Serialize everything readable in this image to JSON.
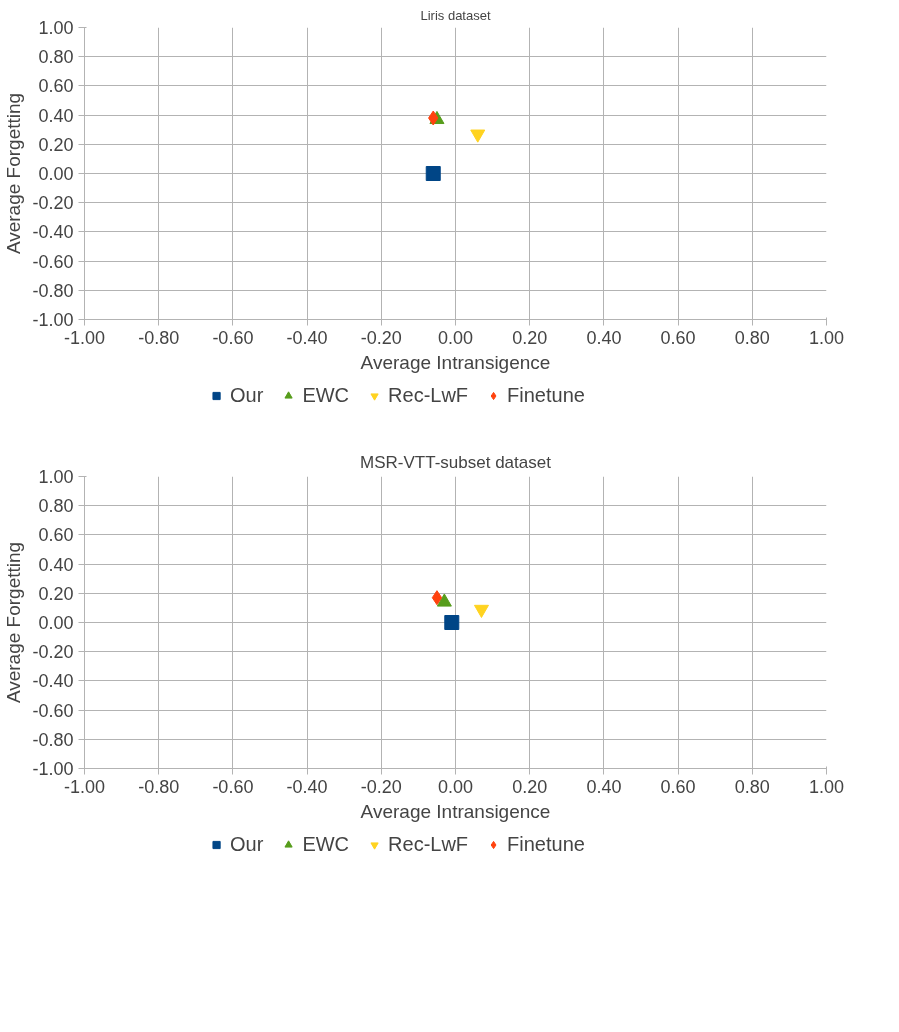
{
  "chart_data": [
    {
      "type": "scatter",
      "title": "Liris dataset",
      "xlabel": "Average Intransigence",
      "ylabel": "Average Forgetting",
      "grid": true,
      "legend": "bottom",
      "xlim": [
        -1,
        1
      ],
      "ylim": [
        -1,
        1
      ],
      "xticks": [
        {
          "value": -1,
          "label": "-1.00"
        },
        {
          "value": -0.8,
          "label": "-0.80"
        },
        {
          "value": -0.6,
          "label": "-0.60"
        },
        {
          "value": -0.4,
          "label": "-0.40"
        },
        {
          "value": -0.2,
          "label": "-0.20"
        },
        {
          "value": 0,
          "label": "0.00"
        },
        {
          "value": 0.2,
          "label": "0.20"
        },
        {
          "value": 0.4,
          "label": "0.40"
        },
        {
          "value": 0.6,
          "label": "0.60"
        },
        {
          "value": 0.8,
          "label": "0.80"
        },
        {
          "value": 1,
          "label": "1.00"
        }
      ],
      "yticks": [
        {
          "value": -1,
          "label": "-1.00"
        },
        {
          "value": -0.8,
          "label": "-0.80"
        },
        {
          "value": -0.6,
          "label": "-0.60"
        },
        {
          "value": -0.4,
          "label": "-0.40"
        },
        {
          "value": -0.2,
          "label": "-0.20"
        },
        {
          "value": 0,
          "label": "0.00"
        },
        {
          "value": 0.2,
          "label": "0.20"
        },
        {
          "value": 0.4,
          "label": "0.40"
        },
        {
          "value": 0.6,
          "label": "0.60"
        },
        {
          "value": 0.8,
          "label": "0.80"
        },
        {
          "value": 1,
          "label": "1.00"
        }
      ],
      "series": [
        {
          "name": "Our",
          "color": "#004586",
          "marker": "square",
          "x": [
            -0.06
          ],
          "values": [
            0.0
          ]
        },
        {
          "name": "EWC",
          "color": "#579d1c",
          "marker": "triangle",
          "x": [
            -0.05
          ],
          "values": [
            0.37
          ]
        },
        {
          "name": "Rec-LwF",
          "color": "#ffd320",
          "marker": "triangle_down",
          "x": [
            0.06
          ],
          "values": [
            0.27
          ]
        },
        {
          "name": "Finetune",
          "color": "#ff420e",
          "marker": "diamond",
          "x": [
            -0.06
          ],
          "values": [
            0.38
          ]
        }
      ]
    },
    {
      "type": "scatter",
      "title": "MSR-VTT-subset dataset",
      "xlabel": "Average Intransigence",
      "ylabel": "Average Forgetting",
      "grid": true,
      "legend": "bottom",
      "xlim": [
        -1,
        1
      ],
      "ylim": [
        -1,
        1
      ],
      "xticks": [
        {
          "value": -1,
          "label": "-1.00"
        },
        {
          "value": -0.8,
          "label": "-0.80"
        },
        {
          "value": -0.6,
          "label": "-0.60"
        },
        {
          "value": -0.4,
          "label": "-0.40"
        },
        {
          "value": -0.2,
          "label": "-0.20"
        },
        {
          "value": 0,
          "label": "0.00"
        },
        {
          "value": 0.2,
          "label": "0.20"
        },
        {
          "value": 0.4,
          "label": "0.40"
        },
        {
          "value": 0.6,
          "label": "0.60"
        },
        {
          "value": 0.8,
          "label": "0.80"
        },
        {
          "value": 1,
          "label": "1.00"
        }
      ],
      "yticks": [
        {
          "value": -1,
          "label": "-1.00"
        },
        {
          "value": -0.8,
          "label": "-0.80"
        },
        {
          "value": -0.6,
          "label": "-0.60"
        },
        {
          "value": -0.4,
          "label": "-0.40"
        },
        {
          "value": -0.2,
          "label": "-0.20"
        },
        {
          "value": 0,
          "label": "0.00"
        },
        {
          "value": 0.2,
          "label": "0.20"
        },
        {
          "value": 0.4,
          "label": "0.40"
        },
        {
          "value": 0.6,
          "label": "0.60"
        },
        {
          "value": 0.8,
          "label": "0.80"
        },
        {
          "value": 1,
          "label": "1.00"
        }
      ],
      "series": [
        {
          "name": "Our",
          "color": "#004586",
          "marker": "square",
          "x": [
            -0.01
          ],
          "values": [
            0.0
          ]
        },
        {
          "name": "EWC",
          "color": "#579d1c",
          "marker": "triangle",
          "x": [
            -0.03
          ],
          "values": [
            0.14
          ]
        },
        {
          "name": "Rec-LwF",
          "color": "#ffd320",
          "marker": "triangle_down",
          "x": [
            0.07
          ],
          "values": [
            0.09
          ]
        },
        {
          "name": "Finetune",
          "color": "#ff420e",
          "marker": "diamond",
          "x": [
            -0.05
          ],
          "values": [
            0.17
          ]
        }
      ]
    }
  ]
}
